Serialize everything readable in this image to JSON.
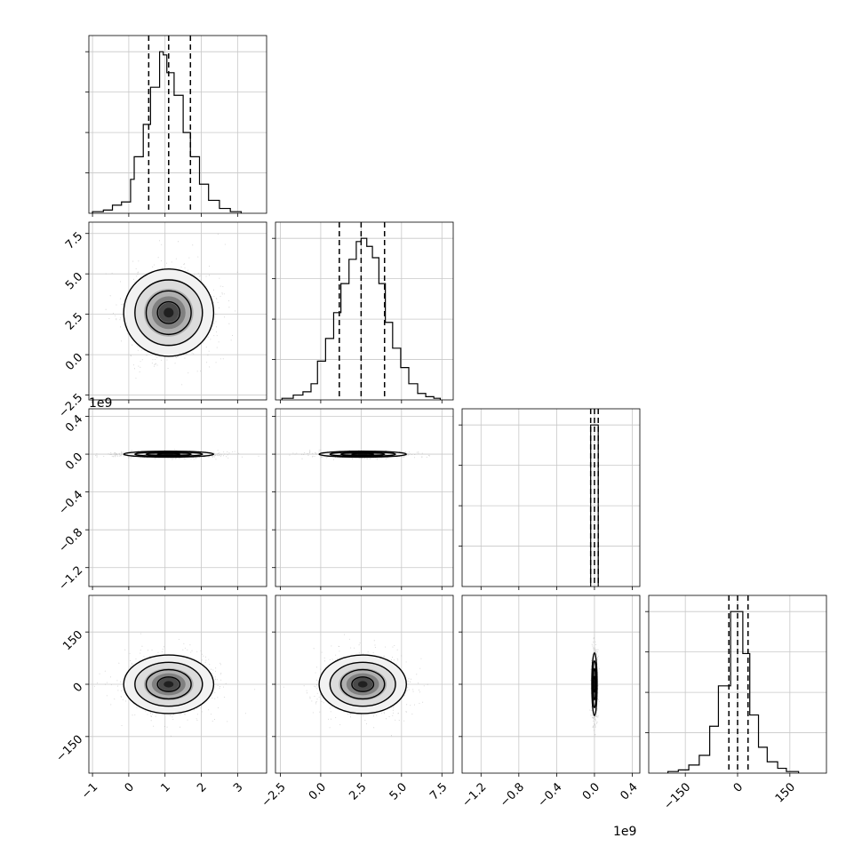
{
  "chart_data": {
    "type": "corner",
    "grid": true,
    "offset_label_x": "1e9",
    "offset_label_y": "1e9",
    "axes": {
      "p0": {
        "range": [
          -1.1,
          3.8
        ],
        "ticks": [
          -1,
          0,
          1,
          2,
          3
        ],
        "tick_labels": [
          "−1",
          "0",
          "1",
          "2",
          "3"
        ]
      },
      "p1": {
        "range": [
          -2.8,
          8.2
        ],
        "ticks": [
          -2.5,
          0.0,
          2.5,
          5.0,
          7.5
        ],
        "tick_labels": [
          "−2.5",
          "0.0",
          "2.5",
          "5.0",
          "7.5"
        ]
      },
      "p2": {
        "range": [
          -1.4,
          0.48
        ],
        "ticks": [
          -1.2,
          -0.8,
          -0.4,
          0.0,
          0.4
        ],
        "tick_labels": [
          "−1.2",
          "−0.8",
          "−0.4",
          "0.0",
          "0.4"
        ]
      },
      "p3": {
        "range": [
          -255,
          255
        ],
        "ticks": [
          -150,
          0,
          150
        ],
        "tick_labels": [
          "−150",
          "0",
          "150"
        ]
      }
    },
    "histograms": [
      {
        "param": "p0",
        "bin_edges": [
          -1.0,
          -0.7,
          -0.45,
          -0.2,
          0.05,
          0.15,
          0.4,
          0.6,
          0.85,
          0.95,
          1.05,
          1.25,
          1.5,
          1.7,
          1.95,
          2.2,
          2.5,
          2.8,
          3.1
        ],
        "counts": [
          0.01,
          0.02,
          0.05,
          0.07,
          0.21,
          0.35,
          0.55,
          0.78,
          1.0,
          0.98,
          0.87,
          0.73,
          0.5,
          0.35,
          0.18,
          0.08,
          0.03,
          0.01
        ],
        "quantiles": [
          0.55,
          1.1,
          1.7
        ]
      },
      {
        "param": "p1",
        "bin_edges": [
          -2.4,
          -1.7,
          -1.1,
          -0.6,
          -0.2,
          0.3,
          0.8,
          1.25,
          1.75,
          2.2,
          2.5,
          2.85,
          3.2,
          3.6,
          4.0,
          4.45,
          4.95,
          5.45,
          6.0,
          6.5,
          7.0,
          7.4
        ],
        "counts": [
          0.01,
          0.03,
          0.05,
          0.1,
          0.24,
          0.38,
          0.54,
          0.72,
          0.87,
          0.98,
          1.0,
          0.95,
          0.88,
          0.72,
          0.48,
          0.32,
          0.2,
          0.1,
          0.04,
          0.02,
          0.01
        ],
        "quantiles": [
          1.15,
          2.5,
          3.95
        ]
      },
      {
        "param": "p2",
        "bin_edges": [
          -0.04,
          0.0,
          0.04
        ],
        "counts": [
          1.0,
          1.0
        ],
        "quantiles": [
          -0.04,
          0.0,
          0.04
        ]
      },
      {
        "param": "p3",
        "bin_edges": [
          -200,
          -170,
          -140,
          -110,
          -80,
          -55,
          -20,
          -5,
          15,
          35,
          60,
          85,
          115,
          140,
          175
        ],
        "counts": [
          0.01,
          0.02,
          0.05,
          0.11,
          0.29,
          0.54,
          1.0,
          1.0,
          0.74,
          0.36,
          0.16,
          0.07,
          0.03,
          0.01
        ],
        "quantiles": [
          -25,
          0,
          30
        ]
      }
    ],
    "pairs": [
      {
        "x": "p0",
        "y": "p1",
        "center": [
          1.1,
          2.6
        ],
        "sx": 0.62,
        "sy": 1.35,
        "rho": 0.0
      },
      {
        "x": "p0",
        "y": "p2",
        "center": [
          1.1,
          0.0
        ],
        "sx": 0.62,
        "sy": 0.016,
        "rho": 0.0
      },
      {
        "x": "p1",
        "y": "p2",
        "center": [
          2.6,
          0.0
        ],
        "sx": 1.35,
        "sy": 0.016,
        "rho": 0.0
      },
      {
        "x": "p0",
        "y": "p3",
        "center": [
          1.1,
          0.0
        ],
        "sx": 0.62,
        "sy": 42,
        "rho": 0.0
      },
      {
        "x": "p1",
        "y": "p3",
        "center": [
          2.6,
          0.0
        ],
        "sx": 1.35,
        "sy": 42,
        "rho": 0.0
      },
      {
        "x": "p2",
        "y": "p3",
        "center": [
          0.0,
          0.0
        ],
        "sx": 0.014,
        "sy": 45,
        "rho": 0.0
      }
    ]
  }
}
